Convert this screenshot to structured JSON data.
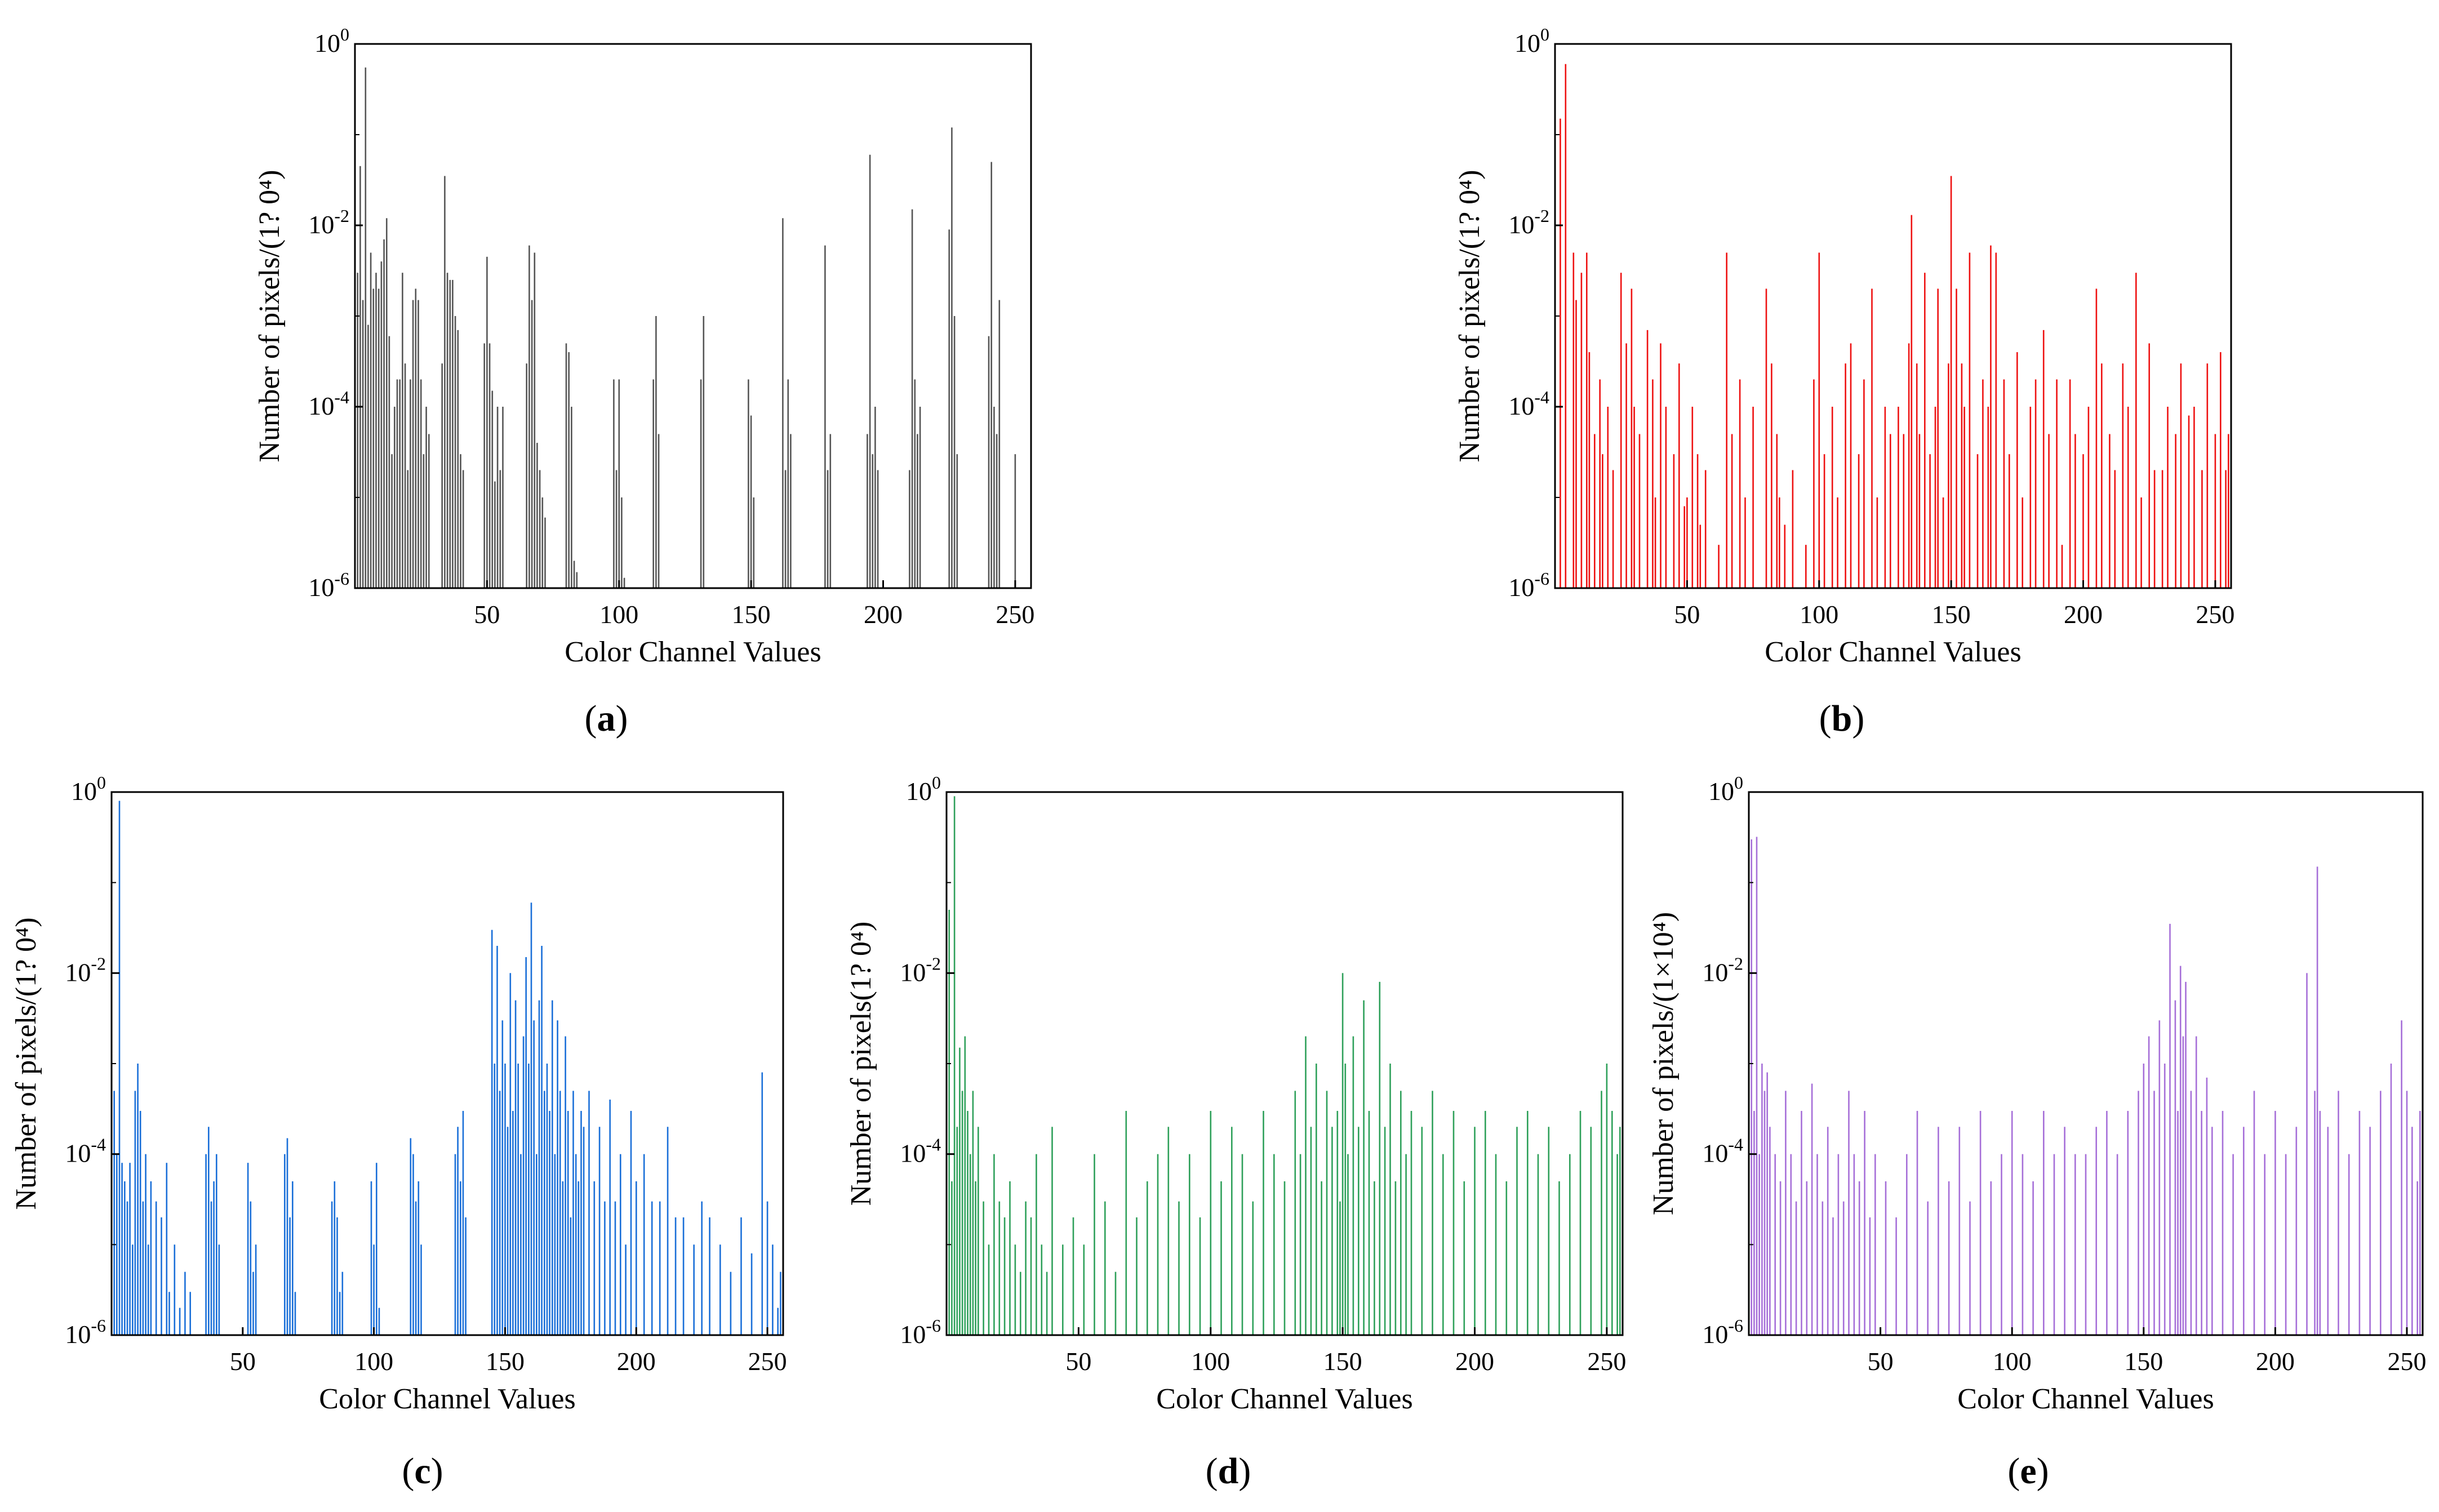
{
  "figure": {
    "captions": [
      "a",
      "b",
      "c",
      "d",
      "e"
    ]
  },
  "chart_data": [
    {
      "panel": "a",
      "type": "bar",
      "color": "#555555",
      "xlabel": "Color Channel Values",
      "ylabel": "Number of pixels/(1? 0⁴)",
      "xlim": [
        0,
        256
      ],
      "ylim": [
        1e-06,
        1
      ],
      "yscale": "log",
      "xticks": [
        50,
        100,
        150,
        200,
        250
      ],
      "yticks": [
        {
          "base": "10",
          "exp": "0",
          "value": 1
        },
        {
          "base": "10",
          "exp": "-2",
          "value": 0.01
        },
        {
          "base": "10",
          "exp": "-4",
          "value": 0.0001
        },
        {
          "base": "10",
          "exp": "-6",
          "value": 1e-06
        }
      ],
      "x": [
        1,
        2,
        3,
        4,
        5,
        6,
        7,
        8,
        9,
        10,
        11,
        12,
        13,
        14,
        15,
        16,
        17,
        18,
        19,
        20,
        21,
        22,
        23,
        24,
        25,
        26,
        27,
        28,
        33,
        34,
        35,
        36,
        37,
        38,
        39,
        40,
        41,
        49,
        50,
        51,
        52,
        53,
        54,
        55,
        56,
        65,
        66,
        67,
        68,
        69,
        70,
        71,
        72,
        80,
        81,
        82,
        83,
        84,
        98,
        99,
        100,
        101,
        102,
        113,
        114,
        115,
        131,
        132,
        149,
        150,
        151,
        162,
        163,
        164,
        165,
        178,
        179,
        180,
        194,
        195,
        196,
        197,
        198,
        210,
        211,
        212,
        213,
        214,
        225,
        226,
        227,
        228,
        240,
        241,
        242,
        243,
        244,
        250
      ],
      "values": [
        0.003,
        0.045,
        0.0015,
        0.55,
        0.0008,
        0.005,
        0.002,
        0.003,
        0.002,
        0.004,
        0.007,
        0.012,
        0.0006,
        3e-05,
        0.0001,
        0.0002,
        0.0002,
        0.003,
        0.0003,
        2e-05,
        0.0002,
        0.0015,
        0.002,
        0.0015,
        0.0002,
        3e-05,
        0.0001,
        5e-05,
        0.0003,
        0.035,
        0.003,
        0.0025,
        0.0025,
        0.001,
        0.0007,
        3e-05,
        2e-05,
        0.0005,
        0.0045,
        0.0005,
        0.00015,
        1.5e-05,
        0.0001,
        2e-05,
        0.0001,
        0.0003,
        0.006,
        0.0015,
        0.005,
        4e-05,
        2e-05,
        1e-05,
        6e-06,
        0.0005,
        0.0004,
        0.0001,
        2e-06,
        1.5e-06,
        0.0002,
        2e-05,
        0.0002,
        1e-05,
        1.3e-06,
        0.0002,
        0.001,
        5e-05,
        0.0002,
        0.001,
        0.0002,
        8e-05,
        1e-05,
        0.012,
        2e-05,
        0.0002,
        5e-05,
        0.006,
        2e-05,
        5e-05,
        5e-05,
        0.06,
        3e-05,
        0.0001,
        2e-05,
        2e-05,
        0.015,
        0.0002,
        5e-05,
        0.0001,
        0.009,
        0.12,
        0.001,
        3e-05,
        0.0006,
        0.05,
        0.0001,
        5e-05,
        0.0015,
        3e-05
      ]
    },
    {
      "panel": "b",
      "type": "bar",
      "color": "#ee1111",
      "xlabel": "Color Channel Values",
      "ylabel": "Number of pixels/(1? 0⁴)",
      "xlim": [
        0,
        256
      ],
      "ylim": [
        1e-06,
        1
      ],
      "yscale": "log",
      "xticks": [
        50,
        100,
        150,
        200,
        250
      ],
      "yticks": [
        {
          "base": "10",
          "exp": "0",
          "value": 1
        },
        {
          "base": "10",
          "exp": "-2",
          "value": 0.01
        },
        {
          "base": "10",
          "exp": "-4",
          "value": 0.0001
        },
        {
          "base": "10",
          "exp": "-6",
          "value": 1e-06
        }
      ],
      "x": [
        2,
        4,
        7,
        8,
        10,
        12,
        13,
        15,
        17,
        18,
        20,
        22,
        25,
        27,
        29,
        30,
        32,
        35,
        37,
        38,
        40,
        42,
        45,
        47,
        49,
        50,
        52,
        54,
        55,
        57,
        60,
        62,
        65,
        67,
        70,
        72,
        75,
        80,
        82,
        84,
        85,
        87,
        90,
        92,
        95,
        98,
        100,
        102,
        105,
        107,
        110,
        112,
        115,
        117,
        120,
        122,
        125,
        127,
        130,
        132,
        134,
        135,
        137,
        138,
        140,
        142,
        144,
        145,
        147,
        149,
        150,
        152,
        154,
        155,
        157,
        160,
        162,
        164,
        165,
        167,
        170,
        172,
        175,
        177,
        180,
        182,
        185,
        187,
        190,
        192,
        195,
        197,
        200,
        202,
        205,
        207,
        210,
        212,
        215,
        217,
        220,
        222,
        225,
        227,
        230,
        232,
        235,
        237,
        240,
        242,
        245,
        247,
        250,
        252,
        254,
        255
      ],
      "values": [
        0.15,
        0.6,
        0.005,
        0.0015,
        0.003,
        0.005,
        0.0004,
        5e-05,
        0.0002,
        3e-05,
        0.0001,
        2e-05,
        0.003,
        0.0005,
        0.002,
        0.0001,
        5e-05,
        0.0007,
        0.0002,
        1e-05,
        0.0005,
        0.0001,
        3e-05,
        0.0003,
        8e-06,
        1e-05,
        0.0001,
        3e-05,
        5e-06,
        2e-05,
        1e-06,
        3e-06,
        0.005,
        5e-05,
        0.0002,
        1e-05,
        0.0001,
        0.002,
        0.0003,
        5e-05,
        1e-05,
        5e-06,
        2e-05,
        1e-06,
        3e-06,
        0.0002,
        0.005,
        3e-05,
        0.0001,
        1e-05,
        0.0003,
        0.0005,
        3e-05,
        0.0002,
        0.002,
        1e-05,
        0.0001,
        5e-05,
        0.0001,
        5e-05,
        0.0005,
        0.013,
        0.0003,
        5e-05,
        0.003,
        3e-05,
        0.0001,
        0.002,
        1e-05,
        0.0003,
        0.035,
        0.002,
        0.0003,
        0.0001,
        0.005,
        3e-05,
        0.0002,
        0.0001,
        0.006,
        0.005,
        0.0002,
        3e-05,
        0.0004,
        1e-05,
        0.0001,
        0.0002,
        0.0007,
        5e-05,
        0.0002,
        3e-06,
        0.0002,
        5e-05,
        3e-05,
        0.0001,
        0.002,
        0.0003,
        5e-05,
        2e-05,
        0.0003,
        0.0001,
        0.003,
        1e-05,
        0.0005,
        2e-05,
        2e-05,
        0.0001,
        5e-05,
        0.0003,
        8e-05,
        0.0001,
        2e-05,
        0.0003,
        5e-05,
        0.0004,
        2e-05,
        5e-05
      ]
    },
    {
      "panel": "c",
      "type": "bar",
      "color": "#1a6fd8",
      "xlabel": "Color Channel Values",
      "ylabel": "Number of pixels/(1? 0⁴)",
      "xlim": [
        0,
        256
      ],
      "ylim": [
        1e-06,
        1
      ],
      "yscale": "log",
      "xticks": [
        50,
        100,
        150,
        200,
        250
      ],
      "yticks": [
        {
          "base": "10",
          "exp": "0",
          "value": 1
        },
        {
          "base": "10",
          "exp": "-2",
          "value": 0.01
        },
        {
          "base": "10",
          "exp": "-4",
          "value": 0.0001
        },
        {
          "base": "10",
          "exp": "-6",
          "value": 1e-06
        }
      ],
      "x": [
        1,
        2,
        3,
        4,
        5,
        6,
        7,
        8,
        9,
        10,
        11,
        12,
        13,
        14,
        15,
        17,
        19,
        21,
        22,
        24,
        26,
        28,
        30,
        36,
        37,
        38,
        39,
        40,
        41,
        52,
        53,
        54,
        55,
        66,
        67,
        68,
        69,
        70,
        84,
        85,
        86,
        87,
        88,
        99,
        100,
        101,
        102,
        114,
        115,
        116,
        117,
        118,
        131,
        132,
        133,
        134,
        135,
        145,
        146,
        147,
        148,
        149,
        150,
        151,
        152,
        153,
        154,
        155,
        156,
        157,
        158,
        159,
        160,
        161,
        162,
        163,
        164,
        165,
        166,
        167,
        168,
        169,
        170,
        171,
        172,
        173,
        174,
        175,
        176,
        177,
        178,
        179,
        180,
        182,
        184,
        186,
        188,
        190,
        192,
        194,
        196,
        198,
        200,
        203,
        206,
        209,
        212,
        215,
        218,
        222,
        225,
        228,
        232,
        236,
        240,
        244,
        248,
        250,
        252,
        254,
        255
      ],
      "values": [
        0.0005,
        0.0001,
        0.8,
        8e-05,
        5e-05,
        3e-05,
        8e-05,
        1e-05,
        0.0005,
        0.001,
        0.0003,
        3e-05,
        0.0001,
        1e-05,
        5e-05,
        3e-05,
        2e-05,
        8e-05,
        3e-06,
        1e-05,
        2e-06,
        5e-06,
        3e-06,
        0.0001,
        0.0002,
        3e-05,
        5e-05,
        0.0001,
        1e-05,
        8e-05,
        3e-05,
        5e-06,
        1e-05,
        0.0001,
        0.00015,
        2e-05,
        5e-05,
        3e-06,
        3e-05,
        5e-05,
        2e-05,
        3e-06,
        5e-06,
        5e-05,
        1e-05,
        8e-05,
        2e-06,
        0.00015,
        0.0001,
        3e-05,
        5e-05,
        1e-05,
        0.0001,
        0.0002,
        5e-05,
        0.0003,
        2e-05,
        0.03,
        0.001,
        0.02,
        0.0005,
        0.003,
        0.001,
        0.0002,
        0.01,
        0.0003,
        0.005,
        0.001,
        0.0001,
        0.002,
        0.015,
        0.001,
        0.06,
        0.003,
        0.0001,
        0.005,
        0.02,
        0.0005,
        0.001,
        0.0003,
        0.005,
        0.0001,
        0.003,
        0.0005,
        5e-05,
        0.002,
        0.0003,
        2e-05,
        0.0005,
        0.0001,
        5e-05,
        0.0003,
        0.0002,
        0.0005,
        5e-05,
        0.0002,
        3e-05,
        0.0004,
        3e-05,
        0.0001,
        1e-05,
        0.0003,
        5e-05,
        0.0001,
        3e-05,
        3e-05,
        0.0002,
        2e-05,
        2e-05,
        1e-05,
        3e-05,
        2e-05,
        1e-05,
        5e-06,
        2e-05,
        8e-06,
        0.0008,
        3e-05,
        1e-05,
        2e-06,
        5e-06
      ]
    },
    {
      "panel": "d",
      "type": "bar",
      "color": "#2ea05a",
      "xlabel": "Color Channel Values",
      "ylabel": "Number of pixels(1? 0⁴)",
      "xlim": [
        0,
        256
      ],
      "ylim": [
        1e-06,
        1
      ],
      "yscale": "log",
      "xticks": [
        50,
        100,
        150,
        200,
        250
      ],
      "yticks": [
        {
          "base": "10",
          "exp": "0",
          "value": 1
        },
        {
          "base": "10",
          "exp": "-2",
          "value": 0.01
        },
        {
          "base": "10",
          "exp": "-4",
          "value": 0.0001
        },
        {
          "base": "10",
          "exp": "-6",
          "value": 1e-06
        }
      ],
      "x": [
        1,
        2,
        3,
        4,
        5,
        6,
        7,
        8,
        9,
        10,
        11,
        12,
        14,
        16,
        18,
        20,
        22,
        24,
        26,
        28,
        30,
        32,
        34,
        36,
        38,
        40,
        44,
        48,
        52,
        56,
        60,
        64,
        68,
        72,
        76,
        80,
        84,
        88,
        92,
        96,
        100,
        104,
        108,
        112,
        116,
        120,
        124,
        128,
        132,
        134,
        136,
        138,
        140,
        142,
        144,
        146,
        148,
        149,
        150,
        151,
        152,
        154,
        156,
        158,
        160,
        162,
        164,
        166,
        168,
        170,
        172,
        174,
        176,
        180,
        184,
        188,
        192,
        196,
        200,
        204,
        208,
        212,
        216,
        220,
        224,
        228,
        232,
        236,
        240,
        244,
        248,
        250,
        252,
        254,
        255
      ],
      "values": [
        0.05,
        5e-05,
        0.9,
        0.0002,
        0.0015,
        0.0005,
        0.002,
        0.0003,
        0.0001,
        0.0005,
        5e-05,
        0.0002,
        3e-05,
        1e-05,
        0.0001,
        3e-05,
        2e-05,
        5e-05,
        1e-05,
        5e-06,
        3e-05,
        2e-05,
        0.0001,
        1e-05,
        5e-06,
        0.0002,
        1e-05,
        2e-05,
        1e-05,
        0.0001,
        3e-05,
        5e-06,
        0.0003,
        2e-05,
        5e-05,
        0.0001,
        0.0002,
        3e-05,
        0.0001,
        2e-05,
        0.0003,
        5e-05,
        0.0002,
        0.0001,
        3e-05,
        0.0003,
        0.0001,
        5e-05,
        0.0005,
        0.0001,
        0.002,
        0.0002,
        0.001,
        5e-05,
        0.0005,
        0.0002,
        0.0003,
        3e-05,
        0.01,
        0.001,
        0.0001,
        0.002,
        0.0002,
        0.005,
        0.0003,
        5e-05,
        0.008,
        0.0002,
        0.001,
        5e-05,
        0.0005,
        0.0001,
        0.0003,
        0.0002,
        0.0005,
        0.0001,
        0.0003,
        5e-05,
        0.0002,
        0.0003,
        0.0001,
        5e-05,
        0.0002,
        0.0003,
        0.0001,
        0.0002,
        5e-05,
        0.0001,
        0.0003,
        0.0002,
        0.0005,
        0.001,
        0.0003,
        0.0001,
        0.0002
      ]
    },
    {
      "panel": "e",
      "type": "bar",
      "color": "#a66fd8",
      "xlabel": "Color Channel Values",
      "ylabel": "Number of pixels/(1×10⁴)",
      "xlim": [
        0,
        256
      ],
      "ylim": [
        1e-06,
        1
      ],
      "yscale": "log",
      "xticks": [
        50,
        100,
        150,
        200,
        250
      ],
      "yticks": [
        {
          "base": "10",
          "exp": "0",
          "value": 1
        },
        {
          "base": "10",
          "exp": "-2",
          "value": 0.01
        },
        {
          "base": "10",
          "exp": "-4",
          "value": 0.0001
        },
        {
          "base": "10",
          "exp": "-6",
          "value": 1e-06
        }
      ],
      "x": [
        1,
        2,
        3,
        4,
        5,
        6,
        7,
        8,
        10,
        12,
        14,
        16,
        18,
        20,
        22,
        24,
        26,
        28,
        30,
        32,
        34,
        36,
        38,
        40,
        42,
        44,
        46,
        48,
        52,
        56,
        60,
        64,
        68,
        72,
        76,
        80,
        84,
        88,
        92,
        96,
        100,
        104,
        108,
        112,
        116,
        120,
        124,
        128,
        132,
        136,
        140,
        144,
        148,
        150,
        152,
        154,
        156,
        158,
        160,
        162,
        163,
        164,
        165,
        166,
        168,
        170,
        172,
        174,
        176,
        180,
        184,
        188,
        192,
        196,
        200,
        204,
        208,
        212,
        215,
        216,
        217,
        220,
        224,
        228,
        232,
        236,
        240,
        244,
        248,
        250,
        252,
        254,
        255
      ],
      "values": [
        0.3,
        0.0003,
        0.32,
        0.0001,
        0.001,
        0.0005,
        0.0008,
        0.0002,
        0.0001,
        5e-05,
        0.0005,
        0.0001,
        3e-05,
        0.0003,
        5e-05,
        0.0006,
        0.0001,
        3e-05,
        0.0002,
        2e-05,
        0.0001,
        3e-05,
        0.0005,
        0.0001,
        5e-05,
        0.0003,
        2e-05,
        0.0001,
        5e-05,
        2e-05,
        0.0001,
        0.0003,
        3e-05,
        0.0002,
        5e-05,
        0.0002,
        3e-05,
        0.0003,
        5e-05,
        0.0001,
        0.0003,
        0.0001,
        5e-05,
        0.0003,
        0.0001,
        0.0002,
        0.0001,
        0.0001,
        0.0002,
        0.0003,
        0.0001,
        0.0003,
        0.0005,
        0.001,
        0.002,
        0.0005,
        0.003,
        0.001,
        0.035,
        0.005,
        0.0003,
        0.012,
        0.002,
        0.008,
        0.0005,
        0.002,
        0.0003,
        0.0007,
        0.0002,
        0.0003,
        0.0001,
        0.0002,
        0.0005,
        0.0001,
        0.0003,
        0.0001,
        0.0002,
        0.01,
        0.0005,
        0.15,
        0.0003,
        0.0002,
        0.0005,
        0.0001,
        0.0003,
        0.0002,
        0.0005,
        0.001,
        0.003,
        0.0005,
        0.0002,
        5e-05,
        0.0003
      ]
    }
  ]
}
